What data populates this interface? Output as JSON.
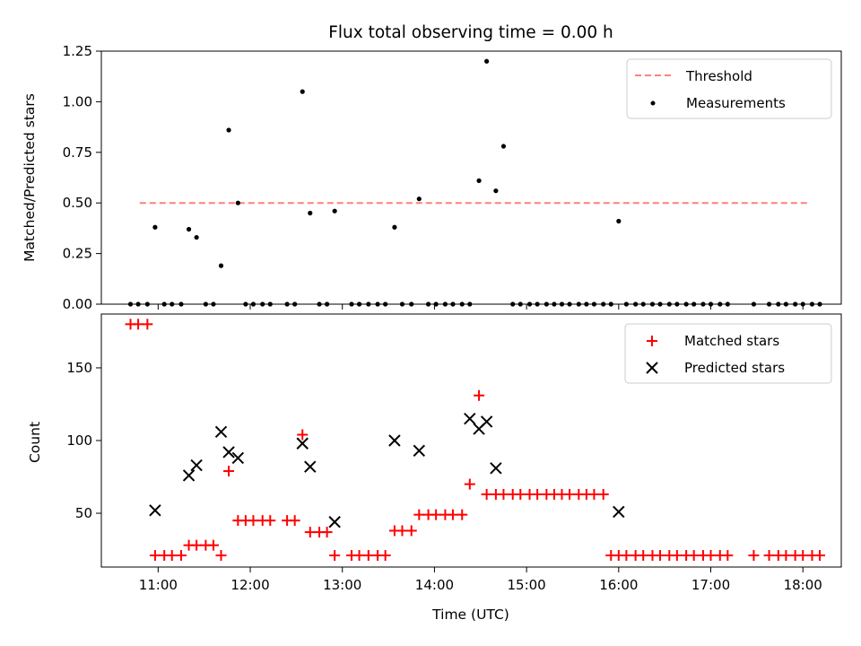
{
  "chart_data": [
    {
      "type": "scatter",
      "title": "Flux total observing time = 0.00 h",
      "xlabel": "",
      "ylabel": "Matched/Predicted stars",
      "ylim": [
        0,
        1.25
      ],
      "yticks": [
        "0.00",
        "0.25",
        "0.50",
        "0.75",
        "1.00",
        "1.25"
      ],
      "legend_position": "top-right",
      "threshold": {
        "name": "Threshold",
        "value": 0.5,
        "x_start": "10:48",
        "x_end": "18:04",
        "color": "#ff7f7f",
        "style": "dashed"
      },
      "series": [
        {
          "name": "Measurements",
          "color": "#000000",
          "marker": "dot",
          "points": [
            [
              "10:42",
              0
            ],
            [
              "10:47",
              0
            ],
            [
              "10:53",
              0
            ],
            [
              "10:58",
              0.38
            ],
            [
              "11:04",
              0
            ],
            [
              "11:09",
              0
            ],
            [
              "11:15",
              0
            ],
            [
              "11:20",
              0.37
            ],
            [
              "11:25",
              0.33
            ],
            [
              "11:31",
              0
            ],
            [
              "11:36",
              0
            ],
            [
              "11:41",
              0.19
            ],
            [
              "11:46",
              0.86
            ],
            [
              "11:52",
              0.5
            ],
            [
              "11:57",
              0
            ],
            [
              "12:02",
              0
            ],
            [
              "12:08",
              0
            ],
            [
              "12:13",
              0
            ],
            [
              "12:24",
              0
            ],
            [
              "12:29",
              0
            ],
            [
              "12:34",
              1.05
            ],
            [
              "12:39",
              0.45
            ],
            [
              "12:45",
              0
            ],
            [
              "12:50",
              0
            ],
            [
              "12:55",
              0.46
            ],
            [
              "13:06",
              0
            ],
            [
              "13:11",
              0
            ],
            [
              "13:17",
              0
            ],
            [
              "13:23",
              0
            ],
            [
              "13:28",
              0
            ],
            [
              "13:34",
              0.38
            ],
            [
              "13:39",
              0
            ],
            [
              "13:45",
              0
            ],
            [
              "13:50",
              0.52
            ],
            [
              "13:56",
              0
            ],
            [
              "14:01",
              0
            ],
            [
              "14:07",
              0
            ],
            [
              "14:12",
              0
            ],
            [
              "14:18",
              0
            ],
            [
              "14:23",
              0
            ],
            [
              "14:29",
              0.61
            ],
            [
              "14:34",
              1.2
            ],
            [
              "14:40",
              0.56
            ],
            [
              "14:45",
              0.78
            ],
            [
              "14:51",
              0
            ],
            [
              "14:56",
              0
            ],
            [
              "15:02",
              0
            ],
            [
              "15:07",
              0
            ],
            [
              "15:13",
              0
            ],
            [
              "15:18",
              0
            ],
            [
              "15:23",
              0
            ],
            [
              "15:28",
              0
            ],
            [
              "15:34",
              0
            ],
            [
              "15:39",
              0
            ],
            [
              "15:44",
              0
            ],
            [
              "15:50",
              0
            ],
            [
              "15:55",
              0
            ],
            [
              "16:00",
              0.41
            ],
            [
              "16:05",
              0
            ],
            [
              "16:11",
              0
            ],
            [
              "16:16",
              0
            ],
            [
              "16:22",
              0
            ],
            [
              "16:27",
              0
            ],
            [
              "16:33",
              0
            ],
            [
              "16:38",
              0
            ],
            [
              "16:44",
              0
            ],
            [
              "16:49",
              0
            ],
            [
              "16:55",
              0
            ],
            [
              "17:00",
              0
            ],
            [
              "17:06",
              0
            ],
            [
              "17:11",
              0
            ],
            [
              "17:28",
              0
            ],
            [
              "17:38",
              0
            ],
            [
              "17:44",
              0
            ],
            [
              "17:49",
              0
            ],
            [
              "17:55",
              0
            ],
            [
              "18:00",
              0
            ],
            [
              "18:06",
              0
            ],
            [
              "18:11",
              0
            ]
          ]
        }
      ]
    },
    {
      "type": "scatter",
      "title": "",
      "xlabel": "Time (UTC)",
      "ylabel": "Count",
      "ylim": [
        13,
        187
      ],
      "yticks": [
        "50",
        "100",
        "150"
      ],
      "xticks": [
        "11:00",
        "12:00",
        "13:00",
        "14:00",
        "15:00",
        "16:00",
        "17:00",
        "18:00"
      ],
      "xlim": [
        "10:23",
        "18:25"
      ],
      "legend_position": "top-right",
      "series": [
        {
          "name": "Matched stars",
          "color": "#ff0000",
          "marker": "plus",
          "points": [
            [
              "10:42",
              180
            ],
            [
              "10:47",
              180
            ],
            [
              "10:53",
              180
            ],
            [
              "10:58",
              21
            ],
            [
              "11:04",
              21
            ],
            [
              "11:09",
              21
            ],
            [
              "11:15",
              21
            ],
            [
              "11:20",
              28
            ],
            [
              "11:25",
              28
            ],
            [
              "11:31",
              28
            ],
            [
              "11:36",
              28
            ],
            [
              "11:41",
              21
            ],
            [
              "11:46",
              79
            ],
            [
              "11:52",
              45
            ],
            [
              "11:57",
              45
            ],
            [
              "12:02",
              45
            ],
            [
              "12:08",
              45
            ],
            [
              "12:13",
              45
            ],
            [
              "12:24",
              45
            ],
            [
              "12:29",
              45
            ],
            [
              "12:34",
              104
            ],
            [
              "12:39",
              37
            ],
            [
              "12:45",
              37
            ],
            [
              "12:50",
              37
            ],
            [
              "12:55",
              21
            ],
            [
              "13:06",
              21
            ],
            [
              "13:11",
              21
            ],
            [
              "13:17",
              21
            ],
            [
              "13:23",
              21
            ],
            [
              "13:28",
              21
            ],
            [
              "13:34",
              38
            ],
            [
              "13:39",
              38
            ],
            [
              "13:45",
              38
            ],
            [
              "13:50",
              49
            ],
            [
              "13:56",
              49
            ],
            [
              "14:01",
              49
            ],
            [
              "14:07",
              49
            ],
            [
              "14:12",
              49
            ],
            [
              "14:18",
              49
            ],
            [
              "14:23",
              70
            ],
            [
              "14:29",
              131
            ],
            [
              "14:34",
              63
            ],
            [
              "14:40",
              63
            ],
            [
              "14:45",
              63
            ],
            [
              "14:51",
              63
            ],
            [
              "14:56",
              63
            ],
            [
              "15:02",
              63
            ],
            [
              "15:07",
              63
            ],
            [
              "15:13",
              63
            ],
            [
              "15:18",
              63
            ],
            [
              "15:23",
              63
            ],
            [
              "15:28",
              63
            ],
            [
              "15:34",
              63
            ],
            [
              "15:39",
              63
            ],
            [
              "15:44",
              63
            ],
            [
              "15:50",
              63
            ],
            [
              "15:55",
              21
            ],
            [
              "16:00",
              21
            ],
            [
              "16:05",
              21
            ],
            [
              "16:11",
              21
            ],
            [
              "16:16",
              21
            ],
            [
              "16:22",
              21
            ],
            [
              "16:27",
              21
            ],
            [
              "16:33",
              21
            ],
            [
              "16:38",
              21
            ],
            [
              "16:44",
              21
            ],
            [
              "16:49",
              21
            ],
            [
              "16:55",
              21
            ],
            [
              "17:00",
              21
            ],
            [
              "17:06",
              21
            ],
            [
              "17:11",
              21
            ],
            [
              "17:28",
              21
            ],
            [
              "17:38",
              21
            ],
            [
              "17:44",
              21
            ],
            [
              "17:49",
              21
            ],
            [
              "17:55",
              21
            ],
            [
              "18:00",
              21
            ],
            [
              "18:06",
              21
            ],
            [
              "18:11",
              21
            ]
          ]
        },
        {
          "name": "Predicted stars",
          "color": "#000000",
          "marker": "x",
          "points": [
            [
              "10:58",
              52
            ],
            [
              "11:20",
              76
            ],
            [
              "11:25",
              83
            ],
            [
              "11:41",
              106
            ],
            [
              "11:46",
              92
            ],
            [
              "11:52",
              88
            ],
            [
              "12:34",
              98
            ],
            [
              "12:39",
              82
            ],
            [
              "12:55",
              44
            ],
            [
              "13:34",
              100
            ],
            [
              "13:50",
              93
            ],
            [
              "14:23",
              115
            ],
            [
              "14:29",
              108
            ],
            [
              "14:34",
              113
            ],
            [
              "14:40",
              81
            ],
            [
              "16:00",
              51
            ]
          ]
        }
      ]
    }
  ]
}
